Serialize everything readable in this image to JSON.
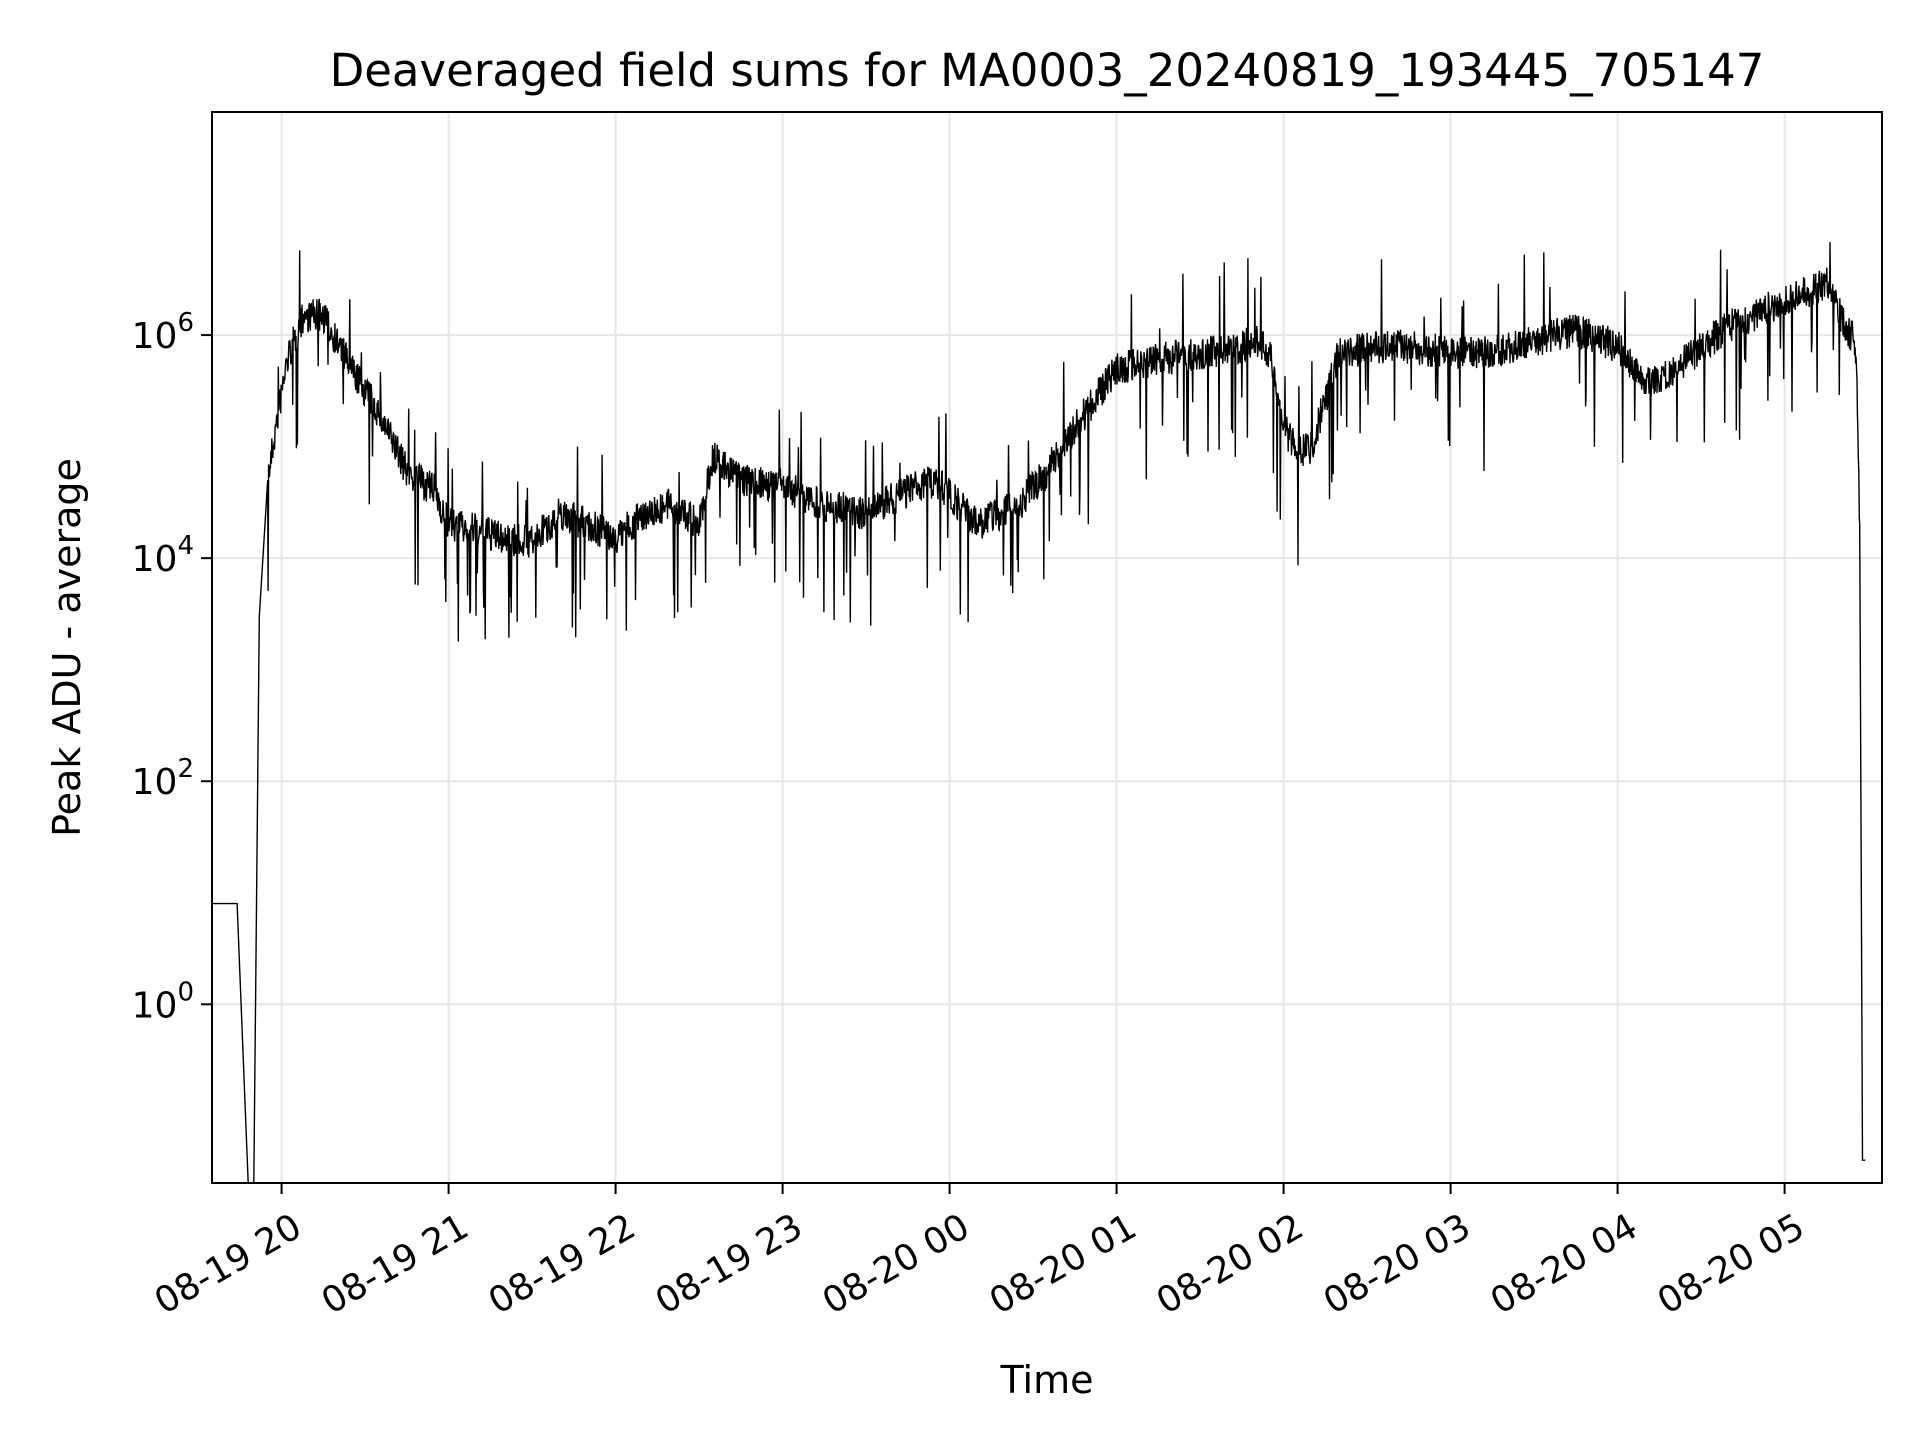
{
  "chart_data": {
    "type": "line",
    "title": "Deaveraged field sums for MA0003_20240819_193445_705147",
    "xlabel": "Time",
    "ylabel": "Peak ADU - average",
    "y_scale": "log",
    "ylim": [
      0.025,
      100000000
    ],
    "xlim": [
      "2024-08-19 19:35",
      "2024-08-20 05:35"
    ],
    "grid": true,
    "x_ticks": [
      "08-19 20",
      "08-19 21",
      "08-19 22",
      "08-19 23",
      "08-20 00",
      "08-20 01",
      "08-20 02",
      "08-20 03",
      "08-20 04",
      "08-20 05"
    ],
    "x_tick_times": [
      "2024-08-19 20:00",
      "2024-08-19 21:00",
      "2024-08-19 22:00",
      "2024-08-19 23:00",
      "2024-08-20 00:00",
      "2024-08-20 01:00",
      "2024-08-20 02:00",
      "2024-08-20 03:00",
      "2024-08-20 04:00",
      "2024-08-20 05:00"
    ],
    "y_ticks": [
      {
        "value": 1,
        "base": "10",
        "exp": "0"
      },
      {
        "value": 100,
        "base": "10",
        "exp": "2"
      },
      {
        "value": 10000,
        "base": "10",
        "exp": "4"
      },
      {
        "value": 1000000,
        "base": "10",
        "exp": "6"
      }
    ],
    "series": [
      {
        "color": "#000000",
        "x": [
          "2024-08-19 19:35",
          "2024-08-19 19:44",
          "2024-08-19 19:48",
          "2024-08-19 19:50",
          "2024-08-19 19:52",
          "2024-08-19 19:55",
          "2024-08-19 19:58",
          "2024-08-19 20:02",
          "2024-08-19 20:08",
          "2024-08-19 20:15",
          "2024-08-19 20:25",
          "2024-08-19 20:35",
          "2024-08-19 20:45",
          "2024-08-19 20:55",
          "2024-08-19 21:00",
          "2024-08-19 21:10",
          "2024-08-19 21:20",
          "2024-08-19 21:30",
          "2024-08-19 21:40",
          "2024-08-19 21:50",
          "2024-08-19 22:00",
          "2024-08-19 22:10",
          "2024-08-19 22:20",
          "2024-08-19 22:30",
          "2024-08-19 22:35",
          "2024-08-19 22:45",
          "2024-08-19 23:00",
          "2024-08-19 23:15",
          "2024-08-19 23:30",
          "2024-08-19 23:45",
          "2024-08-19 23:55",
          "2024-08-20 00:10",
          "2024-08-20 00:25",
          "2024-08-20 00:35",
          "2024-08-20 00:45",
          "2024-08-20 01:00",
          "2024-08-20 01:15",
          "2024-08-20 01:30",
          "2024-08-20 01:40",
          "2024-08-20 01:50",
          "2024-08-20 01:55",
          "2024-08-20 02:00",
          "2024-08-20 02:05",
          "2024-08-20 02:10",
          "2024-08-20 02:20",
          "2024-08-20 02:40",
          "2024-08-20 03:00",
          "2024-08-20 03:15",
          "2024-08-20 03:30",
          "2024-08-20 03:45",
          "2024-08-20 04:00",
          "2024-08-20 04:10",
          "2024-08-20 04:25",
          "2024-08-20 04:40",
          "2024-08-20 05:00",
          "2024-08-20 05:10",
          "2024-08-20 05:15",
          "2024-08-20 05:20",
          "2024-08-20 05:25",
          "2024-08-20 05:26",
          "2024-08-20 05:27",
          "2024-08-20 05:28",
          "2024-08-20 05:29"
        ],
        "y": [
          8,
          8,
          0.02,
          0.02,
          3000,
          50000,
          150000,
          600000,
          1500000,
          1500000,
          500000,
          200000,
          60000,
          40000,
          20000,
          18000,
          15000,
          14000,
          25000,
          20000,
          15000,
          25000,
          30000,
          20000,
          80000,
          50000,
          45000,
          30000,
          25000,
          40000,
          50000,
          20000,
          30000,
          60000,
          150000,
          500000,
          600000,
          700000,
          700000,
          900000,
          700000,
          150000,
          90000,
          100000,
          700000,
          800000,
          700000,
          700000,
          900000,
          1100000,
          800000,
          350000,
          600000,
          1200000,
          2000000,
          2500000,
          3000000,
          1500000,
          900000,
          400000,
          20000,
          0.04,
          0.04
        ]
      }
    ]
  }
}
